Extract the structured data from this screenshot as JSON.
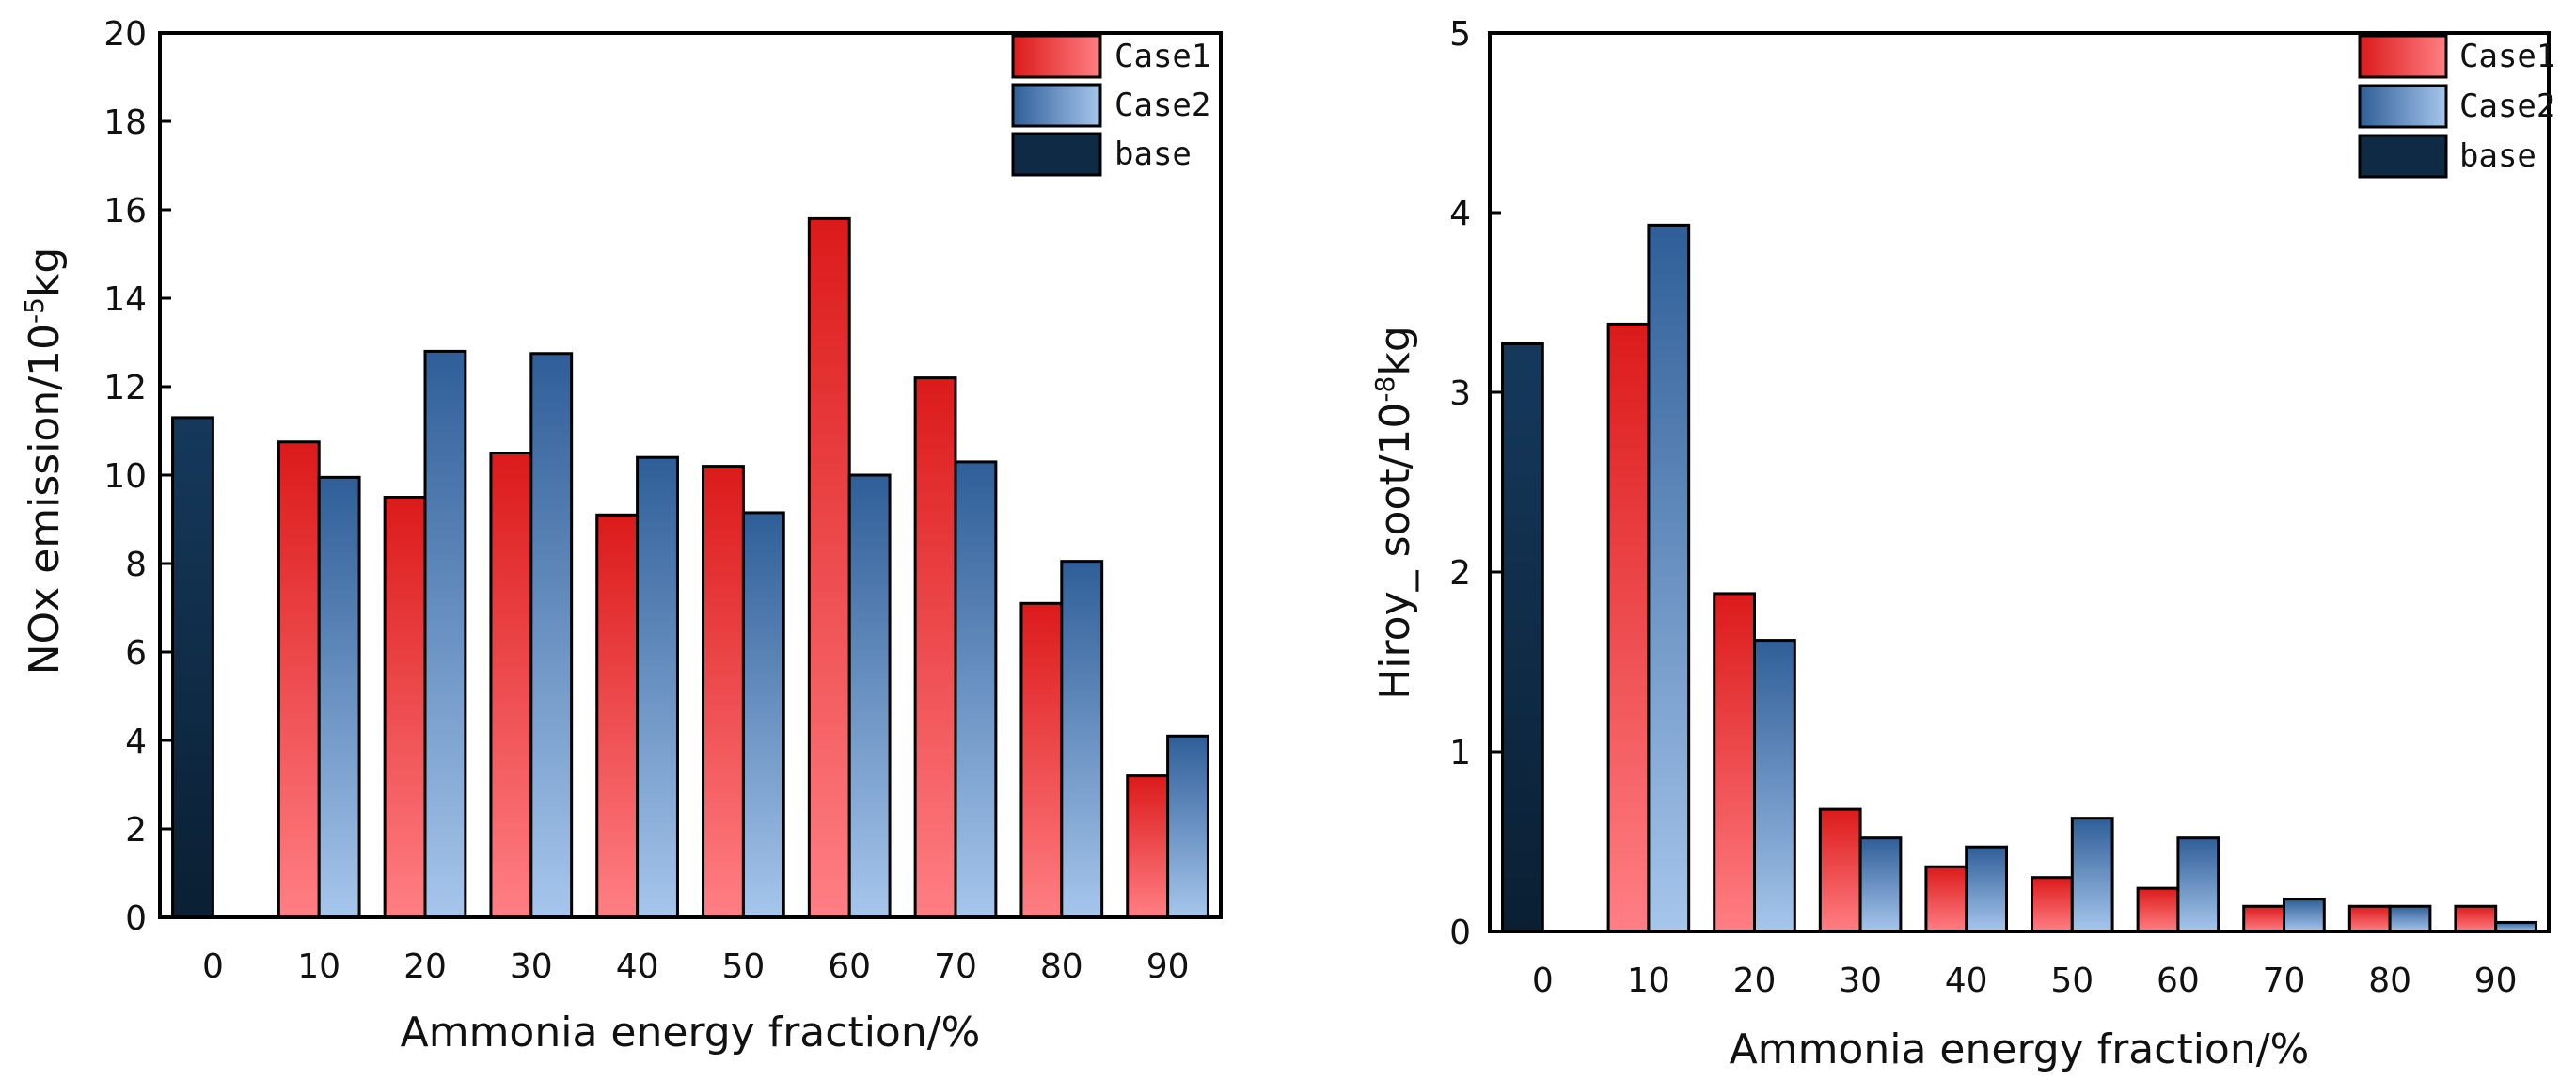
{
  "chart_data": [
    {
      "type": "bar",
      "title": "",
      "xlabel": "Ammonia energy fraction/%",
      "ylabel": "NOx emission/10",
      "ylabel_exp": "-5",
      "ylabel_unit": "kg",
      "ylim": [
        0,
        20
      ],
      "yticks": [
        0,
        2,
        4,
        6,
        8,
        10,
        12,
        14,
        16,
        18,
        20
      ],
      "categories": [
        "0",
        "10",
        "20",
        "30",
        "40",
        "50",
        "60",
        "70",
        "80",
        "90"
      ],
      "series": [
        {
          "name": "base",
          "values": [
            11.3,
            null,
            null,
            null,
            null,
            null,
            null,
            null,
            null,
            null
          ]
        },
        {
          "name": "Case1",
          "values": [
            null,
            10.75,
            9.5,
            10.5,
            9.1,
            10.2,
            15.8,
            12.2,
            7.1,
            3.2
          ]
        },
        {
          "name": "Case2",
          "values": [
            null,
            9.95,
            12.8,
            12.75,
            10.4,
            9.15,
            10.0,
            10.3,
            8.05,
            4.1
          ]
        }
      ],
      "legend": [
        "Case1",
        "Case2",
        "base"
      ],
      "legend_position": "top-right"
    },
    {
      "type": "bar",
      "title": "",
      "xlabel": "Ammonia energy fraction/%",
      "ylabel": "Hiroy_ soot/10",
      "ylabel_exp": "-8",
      "ylabel_unit": "kg",
      "ylim": [
        0,
        5
      ],
      "yticks": [
        0,
        1,
        2,
        3,
        4,
        5
      ],
      "categories": [
        "0",
        "10",
        "20",
        "30",
        "40",
        "50",
        "60",
        "70",
        "80",
        "90"
      ],
      "series": [
        {
          "name": "base",
          "values": [
            3.27,
            null,
            null,
            null,
            null,
            null,
            null,
            null,
            null,
            null
          ]
        },
        {
          "name": "Case1",
          "values": [
            null,
            3.38,
            1.88,
            0.68,
            0.36,
            0.3,
            0.24,
            0.14,
            0.14,
            0.14
          ]
        },
        {
          "name": "Case2",
          "values": [
            null,
            3.93,
            1.62,
            0.52,
            0.47,
            0.63,
            0.52,
            0.18,
            0.14,
            0.05
          ]
        }
      ],
      "legend": [
        "Case1",
        "Case2",
        "base"
      ],
      "legend_position": "top-right"
    }
  ],
  "colors": {
    "case1_light": "#ff7f84",
    "case1_dark": "#dc1a1a",
    "case2_light": "#a6c6ec",
    "case2_dark": "#2f5e98",
    "base_light": "#15395c",
    "base_dark": "#0a1f33",
    "axis": "#000000"
  }
}
